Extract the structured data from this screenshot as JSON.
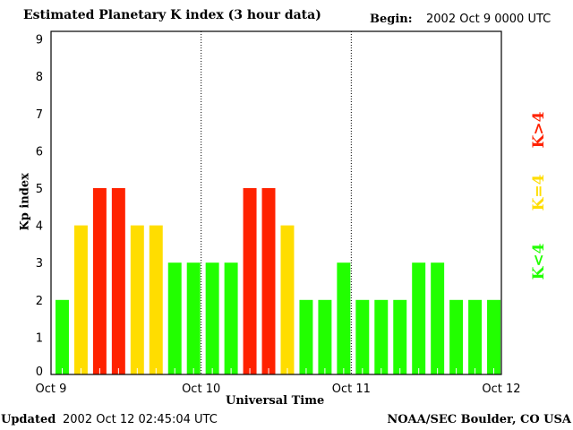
{
  "chart_data": {
    "type": "bar",
    "title": "Estimated Planetary K index (3 hour data)",
    "begin_label": "Begin:",
    "begin_value": "2002 Oct 9 0000 UTC",
    "xlabel": "Universal Time",
    "ylabel": "Kp index",
    "ylim": [
      0,
      9
    ],
    "yticks": [
      "0",
      "1",
      "2",
      "3",
      "4",
      "5",
      "6",
      "7",
      "8",
      "9"
    ],
    "xticks": [
      "Oct 9",
      "Oct 10",
      "Oct 11",
      "Oct 12"
    ],
    "values": [
      2,
      4,
      5,
      5,
      4,
      4,
      3,
      3,
      3,
      3,
      5,
      5,
      4,
      2,
      2,
      3,
      2,
      2,
      2,
      3,
      3,
      2,
      2,
      2
    ],
    "colors": {
      "low": "#22ff00",
      "mid": "#ffdd00",
      "high": "#ff2200"
    },
    "legend": [
      {
        "label": "K>4",
        "color": "#ff2200"
      },
      {
        "label": "K=4",
        "color": "#ffdd00"
      },
      {
        "label": "K<4",
        "color": "#22ff00"
      }
    ]
  },
  "footer": {
    "updated_label": "Updated",
    "updated_value": "2002 Oct 12 02:45:04 UTC",
    "credit": "NOAA/SEC Boulder, CO USA"
  }
}
